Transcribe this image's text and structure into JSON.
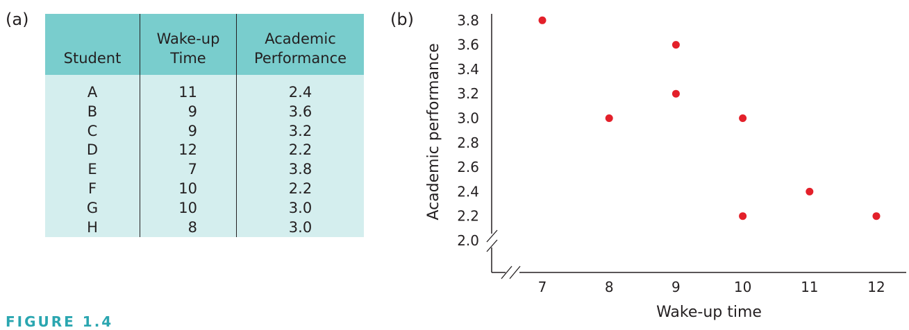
{
  "panel_a_label": "(a)",
  "panel_b_label": "(b)",
  "figure_caption": "FIGURE 1.4",
  "table": {
    "headers": [
      "Student",
      "Wake-up\nTime",
      "Academic\nPerformance"
    ],
    "students": [
      "A",
      "B",
      "C",
      "D",
      "E",
      "F",
      "G",
      "H"
    ],
    "wake_up": [
      "11",
      "9",
      "9",
      "12",
      "7",
      "10",
      "10",
      "8"
    ],
    "performance": [
      "2.4",
      "3.6",
      "3.2",
      "2.2",
      "3.8",
      "2.2",
      "3.0",
      "3.0"
    ]
  },
  "chart_data": {
    "type": "scatter",
    "xlabel": "Wake-up time",
    "ylabel": "Academic performance",
    "x_ticks": [
      7,
      8,
      9,
      10,
      11,
      12
    ],
    "y_ticks": [
      "2.0",
      "2.2",
      "2.4",
      "2.6",
      "2.8",
      "3.0",
      "3.2",
      "3.4",
      "3.6",
      "3.8"
    ],
    "xlim": [
      7,
      12
    ],
    "ylim": [
      2.0,
      3.8
    ],
    "axis_breaks": true,
    "grid": false,
    "point_color": "#e3202a",
    "points": [
      {
        "x": 11,
        "y": 2.4
      },
      {
        "x": 9,
        "y": 3.6
      },
      {
        "x": 9,
        "y": 3.2
      },
      {
        "x": 12,
        "y": 2.2
      },
      {
        "x": 7,
        "y": 3.8
      },
      {
        "x": 10,
        "y": 2.2
      },
      {
        "x": 10,
        "y": 3.0
      },
      {
        "x": 8,
        "y": 3.0
      }
    ]
  }
}
